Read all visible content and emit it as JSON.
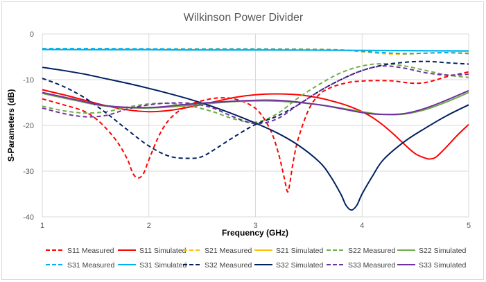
{
  "chart_data": {
    "type": "line",
    "title": "Wilkinson Power Divider",
    "xlabel": "Frequency (GHz)",
    "ylabel": "S-Parameters (dB)",
    "xlim": [
      1,
      5
    ],
    "ylim": [
      -40,
      0
    ],
    "xticks": [
      "1",
      "2",
      "3",
      "4",
      "5"
    ],
    "yticks": [
      "0",
      "-10",
      "-20",
      "-30",
      "-40"
    ],
    "grid": true,
    "legend_position": "bottom",
    "series": [
      {
        "name": "S11 Measured",
        "color": "#ff0000",
        "dash": true,
        "x": [
          1,
          1.2,
          1.4,
          1.55,
          1.7,
          1.8,
          1.85,
          1.9,
          1.95,
          2.0,
          2.1,
          2.2,
          2.35,
          2.5,
          2.65,
          2.8,
          2.95,
          3.05,
          3.15,
          3.22,
          3.27,
          3.3,
          3.32,
          3.35,
          3.4,
          3.5,
          3.6,
          3.7,
          3.8,
          3.9,
          4.0,
          4.1,
          4.2,
          4.3,
          4.4,
          4.5,
          4.6,
          4.7,
          4.8,
          4.9,
          5.0
        ],
        "y": [
          -14.2,
          -15.5,
          -17.0,
          -19.5,
          -23.5,
          -27.5,
          -30.5,
          -31.5,
          -30.5,
          -27.5,
          -22.0,
          -18.5,
          -15.8,
          -14.6,
          -14.0,
          -14.2,
          -15.5,
          -17.5,
          -21.5,
          -26.5,
          -31.5,
          -34.5,
          -33.0,
          -28.5,
          -23.0,
          -16.5,
          -13.2,
          -11.8,
          -11.0,
          -10.5,
          -10.3,
          -10.2,
          -10.2,
          -10.3,
          -10.6,
          -10.8,
          -10.6,
          -10.0,
          -9.3,
          -8.8,
          -8.3
        ]
      },
      {
        "name": "S11 Simulated",
        "color": "#ff0000",
        "dash": false,
        "x": [
          1,
          1.2,
          1.4,
          1.6,
          1.8,
          2.0,
          2.2,
          2.4,
          2.6,
          2.8,
          3.0,
          3.2,
          3.4,
          3.6,
          3.8,
          3.9,
          4.0,
          4.1,
          4.2,
          4.3,
          4.4,
          4.5,
          4.6,
          4.65,
          4.7,
          4.8,
          4.9,
          5.0
        ],
        "y": [
          -12.2,
          -13.3,
          -14.5,
          -15.7,
          -16.6,
          -17.0,
          -16.7,
          -15.9,
          -14.9,
          -13.9,
          -13.3,
          -13.1,
          -13.3,
          -14.0,
          -15.2,
          -16.0,
          -17.0,
          -18.3,
          -20.0,
          -22.0,
          -24.2,
          -26.2,
          -27.2,
          -27.3,
          -26.8,
          -24.5,
          -22.0,
          -19.8
        ]
      },
      {
        "name": "S21 Measured",
        "color": "#ffc000",
        "dash": true,
        "x": [
          1,
          1.5,
          2.0,
          2.5,
          3.0,
          3.5,
          3.8,
          4.0,
          4.2,
          4.4,
          4.6,
          4.8,
          5.0
        ],
        "y": [
          -3.3,
          -3.3,
          -3.3,
          -3.25,
          -3.25,
          -3.3,
          -3.5,
          -3.9,
          -4.3,
          -4.4,
          -4.2,
          -4.1,
          -4.2
        ]
      },
      {
        "name": "S21 Simulated",
        "color": "#ffc000",
        "dash": false,
        "x": [
          1,
          1.5,
          2.0,
          2.5,
          3.0,
          3.5,
          4.0,
          4.5,
          5.0
        ],
        "y": [
          -3.4,
          -3.4,
          -3.4,
          -3.45,
          -3.5,
          -3.55,
          -3.6,
          -3.7,
          -3.8
        ]
      },
      {
        "name": "S22 Measured",
        "color": "#70ad47",
        "dash": true,
        "x": [
          1,
          1.2,
          1.4,
          1.6,
          1.8,
          2.0,
          2.2,
          2.4,
          2.6,
          2.8,
          3.0,
          3.2,
          3.4,
          3.6,
          3.8,
          4.0,
          4.2,
          4.4,
          4.6,
          4.8,
          5.0
        ],
        "y": [
          -15.8,
          -16.8,
          -17.3,
          -17.0,
          -16.0,
          -15.3,
          -15.2,
          -15.8,
          -17.0,
          -18.6,
          -19.3,
          -17.5,
          -14.0,
          -11.0,
          -8.5,
          -7.0,
          -6.5,
          -7.0,
          -8.0,
          -9.0,
          -9.5
        ]
      },
      {
        "name": "S22 Simulated",
        "color": "#70ad47",
        "dash": false,
        "x": [
          1,
          1.3,
          1.6,
          2.0,
          2.4,
          2.8,
          3.2,
          3.6,
          4.0,
          4.2,
          4.4,
          4.6,
          4.8,
          5.0
        ],
        "y": [
          -13.0,
          -14.5,
          -15.8,
          -16.2,
          -15.6,
          -14.8,
          -14.7,
          -15.5,
          -17.0,
          -17.6,
          -17.5,
          -16.5,
          -14.8,
          -12.8
        ]
      },
      {
        "name": "S31 Measured",
        "color": "#00b0f0",
        "dash": true,
        "x": [
          1,
          1.5,
          2.0,
          2.5,
          3.0,
          3.5,
          3.8,
          4.0,
          4.2,
          4.4,
          4.6,
          4.8,
          5.0
        ],
        "y": [
          -3.2,
          -3.2,
          -3.25,
          -3.3,
          -3.3,
          -3.4,
          -3.5,
          -3.8,
          -4.1,
          -4.3,
          -4.2,
          -4.1,
          -4.3
        ]
      },
      {
        "name": "S31 Simulated",
        "color": "#00b0f0",
        "dash": false,
        "x": [
          1,
          1.5,
          2.0,
          2.5,
          3.0,
          3.5,
          4.0,
          4.5,
          5.0
        ],
        "y": [
          -3.4,
          -3.45,
          -3.45,
          -3.5,
          -3.5,
          -3.55,
          -3.6,
          -3.65,
          -3.7
        ]
      },
      {
        "name": "S32 Measured",
        "color": "#002060",
        "dash": true,
        "x": [
          1,
          1.2,
          1.4,
          1.6,
          1.8,
          2.0,
          2.2,
          2.4,
          2.5,
          2.6,
          2.8,
          3.0,
          3.2,
          3.4,
          3.6,
          3.8,
          4.0,
          4.2,
          4.4,
          4.6,
          4.8,
          5.0
        ],
        "y": [
          -9.7,
          -11.5,
          -14.0,
          -17.3,
          -21.0,
          -24.5,
          -26.8,
          -27.2,
          -26.8,
          -25.5,
          -22.5,
          -19.8,
          -18.0,
          -15.5,
          -12.5,
          -10.0,
          -8.0,
          -6.8,
          -6.2,
          -6.0,
          -6.3,
          -6.6
        ]
      },
      {
        "name": "S32 Simulated",
        "color": "#002060",
        "dash": false,
        "x": [
          1,
          1.2,
          1.4,
          1.6,
          1.8,
          2.0,
          2.2,
          2.4,
          2.6,
          2.8,
          3.0,
          3.2,
          3.4,
          3.6,
          3.7,
          3.8,
          3.85,
          3.9,
          3.95,
          4.0,
          4.1,
          4.2,
          4.4,
          4.6,
          4.8,
          5.0
        ],
        "y": [
          -7.3,
          -8.0,
          -8.8,
          -9.8,
          -10.8,
          -11.9,
          -13.1,
          -14.4,
          -15.9,
          -17.6,
          -19.5,
          -21.6,
          -24.3,
          -28.0,
          -31.0,
          -35.0,
          -37.5,
          -38.5,
          -37.5,
          -35.0,
          -31.0,
          -27.5,
          -23.5,
          -20.5,
          -17.8,
          -15.5
        ]
      },
      {
        "name": "S33 Measured",
        "color": "#7030a0",
        "dash": true,
        "x": [
          1,
          1.2,
          1.4,
          1.6,
          1.8,
          2.0,
          2.2,
          2.4,
          2.6,
          2.8,
          3.0,
          3.2,
          3.4,
          3.6,
          3.8,
          4.0,
          4.2,
          4.4,
          4.6,
          4.8,
          5.0
        ],
        "y": [
          -16.2,
          -17.4,
          -18.1,
          -17.8,
          -16.4,
          -15.5,
          -15.1,
          -15.2,
          -16.2,
          -18.2,
          -19.6,
          -18.6,
          -15.5,
          -12.5,
          -10.0,
          -8.0,
          -7.0,
          -7.5,
          -8.5,
          -9.0,
          -8.8
        ]
      },
      {
        "name": "S33 Simulated",
        "color": "#7030a0",
        "dash": false,
        "x": [
          1,
          1.3,
          1.6,
          2.0,
          2.4,
          2.8,
          3.2,
          3.6,
          4.0,
          4.2,
          4.4,
          4.6,
          4.8,
          5.0
        ],
        "y": [
          -12.8,
          -14.3,
          -15.7,
          -16.1,
          -15.3,
          -14.7,
          -14.5,
          -15.5,
          -17.2,
          -17.6,
          -17.4,
          -16.2,
          -14.4,
          -12.4
        ]
      }
    ]
  }
}
